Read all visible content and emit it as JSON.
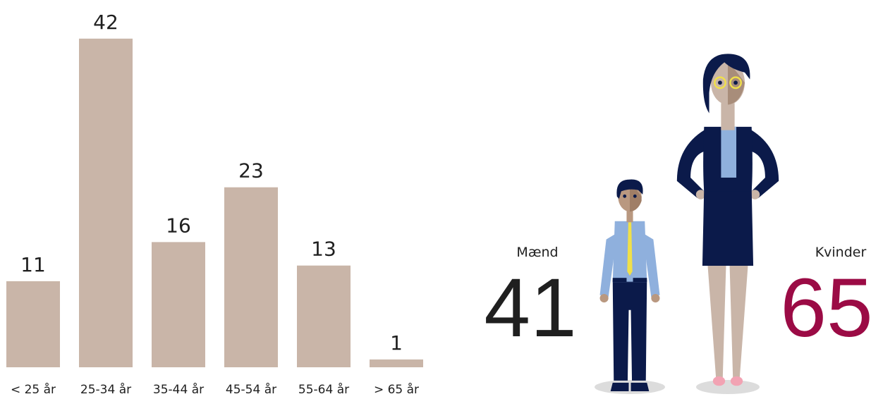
{
  "chart_data": [
    {
      "type": "bar",
      "categories": [
        "< 25 år",
        "25-34 år",
        "35-44 år",
        "45-54 år",
        "55-64 år",
        "> 65 år"
      ],
      "values": [
        11,
        42,
        16,
        23,
        13,
        1
      ],
      "color": "#c9b5a8"
    },
    {
      "type": "pictograph",
      "categories": [
        "Mænd",
        "Kvinder"
      ],
      "values": [
        41,
        65
      ],
      "colors": [
        "#1f1f1f",
        "#9b0b45"
      ]
    }
  ]
}
